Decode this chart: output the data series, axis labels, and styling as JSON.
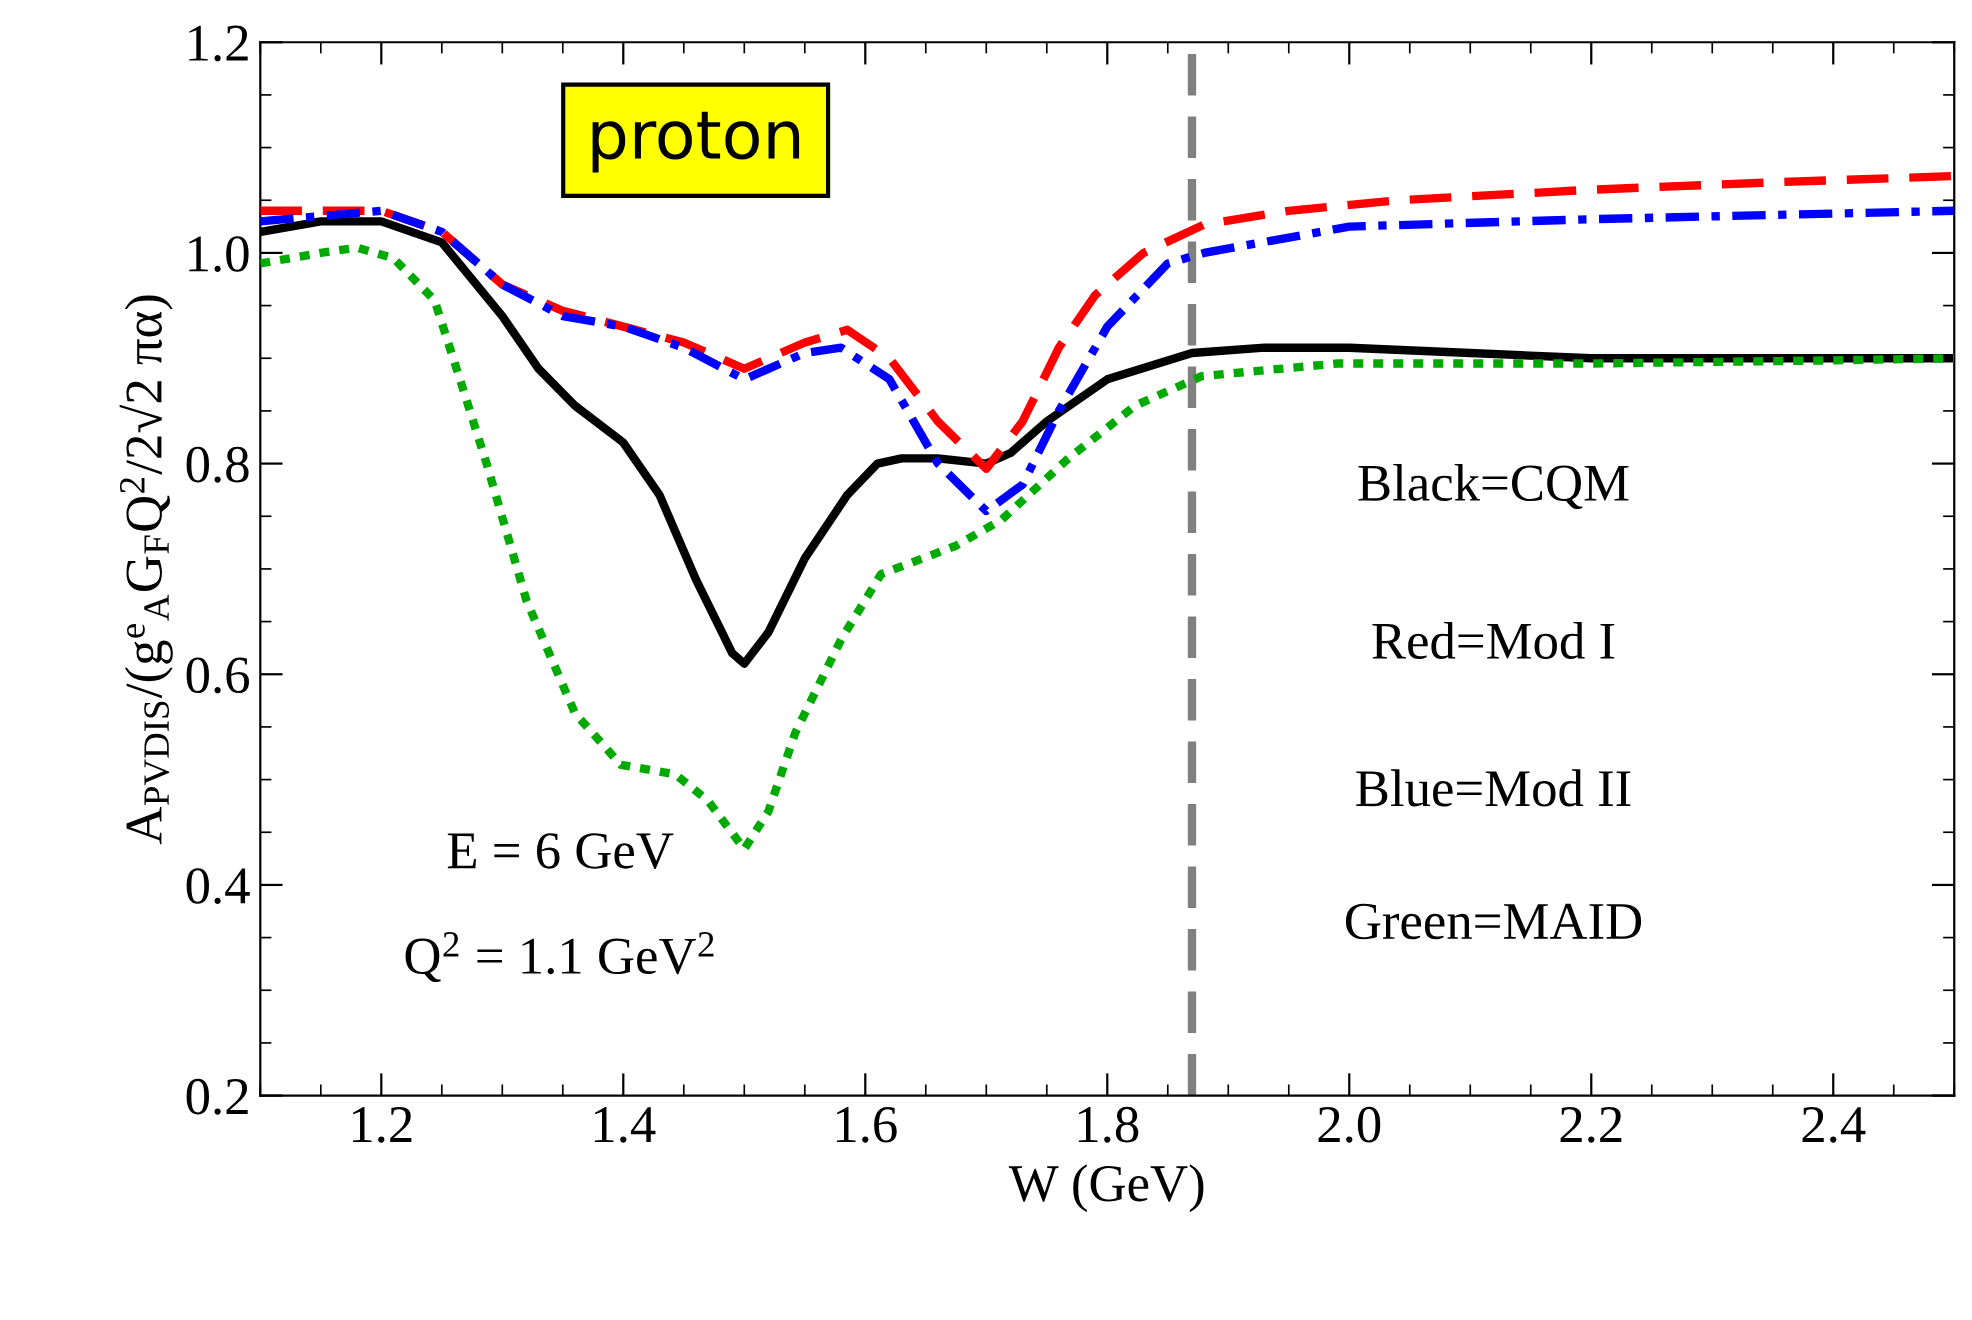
{
  "chart_data": {
    "type": "line",
    "xlabel": "W (GeV)",
    "ylabel": "A$_{PVDIS}$/(g$^{e}$$_{A}$G$_{F}$Q$^{2}$/2√2 πα)",
    "xlim": [
      1.1,
      2.5
    ],
    "xticks": [
      1.2,
      1.4,
      1.6,
      1.8,
      {
        "value": 2,
        "label": "2.0"
      },
      2.2,
      2.4
    ],
    "ylim": [
      0.2,
      1.2
    ],
    "yticks": [
      0.2,
      0.4,
      0.6,
      0.8,
      {
        "value": 1,
        "label": "1.0"
      },
      1.2
    ],
    "grid": false,
    "series": [
      {
        "color": "#000000",
        "line_style": "solid",
        "x": [
          1.1,
          1.15,
          1.2,
          1.25,
          1.3,
          1.33,
          1.36,
          1.4,
          1.43,
          1.46,
          1.49,
          1.5,
          1.52,
          1.55,
          1.585,
          1.61,
          1.63,
          1.66,
          1.7,
          1.72,
          1.75,
          1.8,
          1.87,
          1.93,
          2.0,
          2.1,
          2.2,
          2.3,
          2.4,
          2.5
        ],
        "values": [
          1.02,
          1.03,
          1.03,
          1.01,
          0.94,
          0.89,
          0.855,
          0.82,
          0.77,
          0.69,
          0.62,
          0.61,
          0.64,
          0.71,
          0.77,
          0.8,
          0.805,
          0.805,
          0.8,
          0.81,
          0.84,
          0.88,
          0.905,
          0.91,
          0.91,
          0.905,
          0.9,
          0.9,
          0.9,
          0.9
        ]
      },
      {
        "color": "#ff0000",
        "line_style": "dashed",
        "x": [
          1.1,
          1.2,
          1.25,
          1.3,
          1.35,
          1.4,
          1.45,
          1.5,
          1.55,
          1.585,
          1.62,
          1.66,
          1.7,
          1.73,
          1.76,
          1.79,
          1.83,
          1.88,
          1.95,
          2.04,
          2.2,
          2.35,
          2.5
        ],
        "values": [
          1.04,
          1.04,
          1.02,
          0.97,
          0.945,
          0.93,
          0.915,
          0.89,
          0.915,
          0.927,
          0.9,
          0.84,
          0.795,
          0.84,
          0.91,
          0.96,
          1.0,
          1.027,
          1.04,
          1.05,
          1.06,
          1.067,
          1.073
        ]
      },
      {
        "color": "#0000ff",
        "line_style": "dashdot",
        "x": [
          1.1,
          1.2,
          1.25,
          1.3,
          1.35,
          1.4,
          1.45,
          1.5,
          1.55,
          1.58,
          1.62,
          1.66,
          1.7,
          1.73,
          1.76,
          1.8,
          1.85,
          1.88,
          2.0,
          2.2,
          2.5
        ],
        "values": [
          1.03,
          1.04,
          1.02,
          0.97,
          0.94,
          0.93,
          0.91,
          0.88,
          0.905,
          0.91,
          0.88,
          0.8,
          0.755,
          0.78,
          0.85,
          0.93,
          0.99,
          1.0,
          1.025,
          1.032,
          1.04
        ]
      },
      {
        "color": "#00aa00",
        "line_style": "dotted",
        "x": [
          1.1,
          1.15,
          1.18,
          1.21,
          1.244,
          1.265,
          1.287,
          1.32,
          1.36,
          1.398,
          1.443,
          1.47,
          1.5,
          1.52,
          1.542,
          1.58,
          1.613,
          1.675,
          1.713,
          1.767,
          1.823,
          1.878,
          1.99,
          2.2,
          2.4,
          2.5
        ],
        "values": [
          0.99,
          1.0,
          1.005,
          0.995,
          0.955,
          0.88,
          0.8,
          0.67,
          0.563,
          0.514,
          0.505,
          0.48,
          0.434,
          0.47,
          0.544,
          0.633,
          0.695,
          0.722,
          0.747,
          0.804,
          0.855,
          0.883,
          0.895,
          0.895,
          0.898,
          0.9
        ]
      }
    ],
    "ref_lines": [
      {
        "axis": "x",
        "value": 1.87,
        "color": "#808080",
        "line_style": "dashed"
      }
    ],
    "annotations": [
      "proton",
      "E = 6 GeV",
      "Q$^{2}$ = 1.1 GeV$^{2}$",
      "Black=CQM",
      "Red=Mod I",
      "Blue=Mod II",
      "Green=MAID"
    ]
  }
}
